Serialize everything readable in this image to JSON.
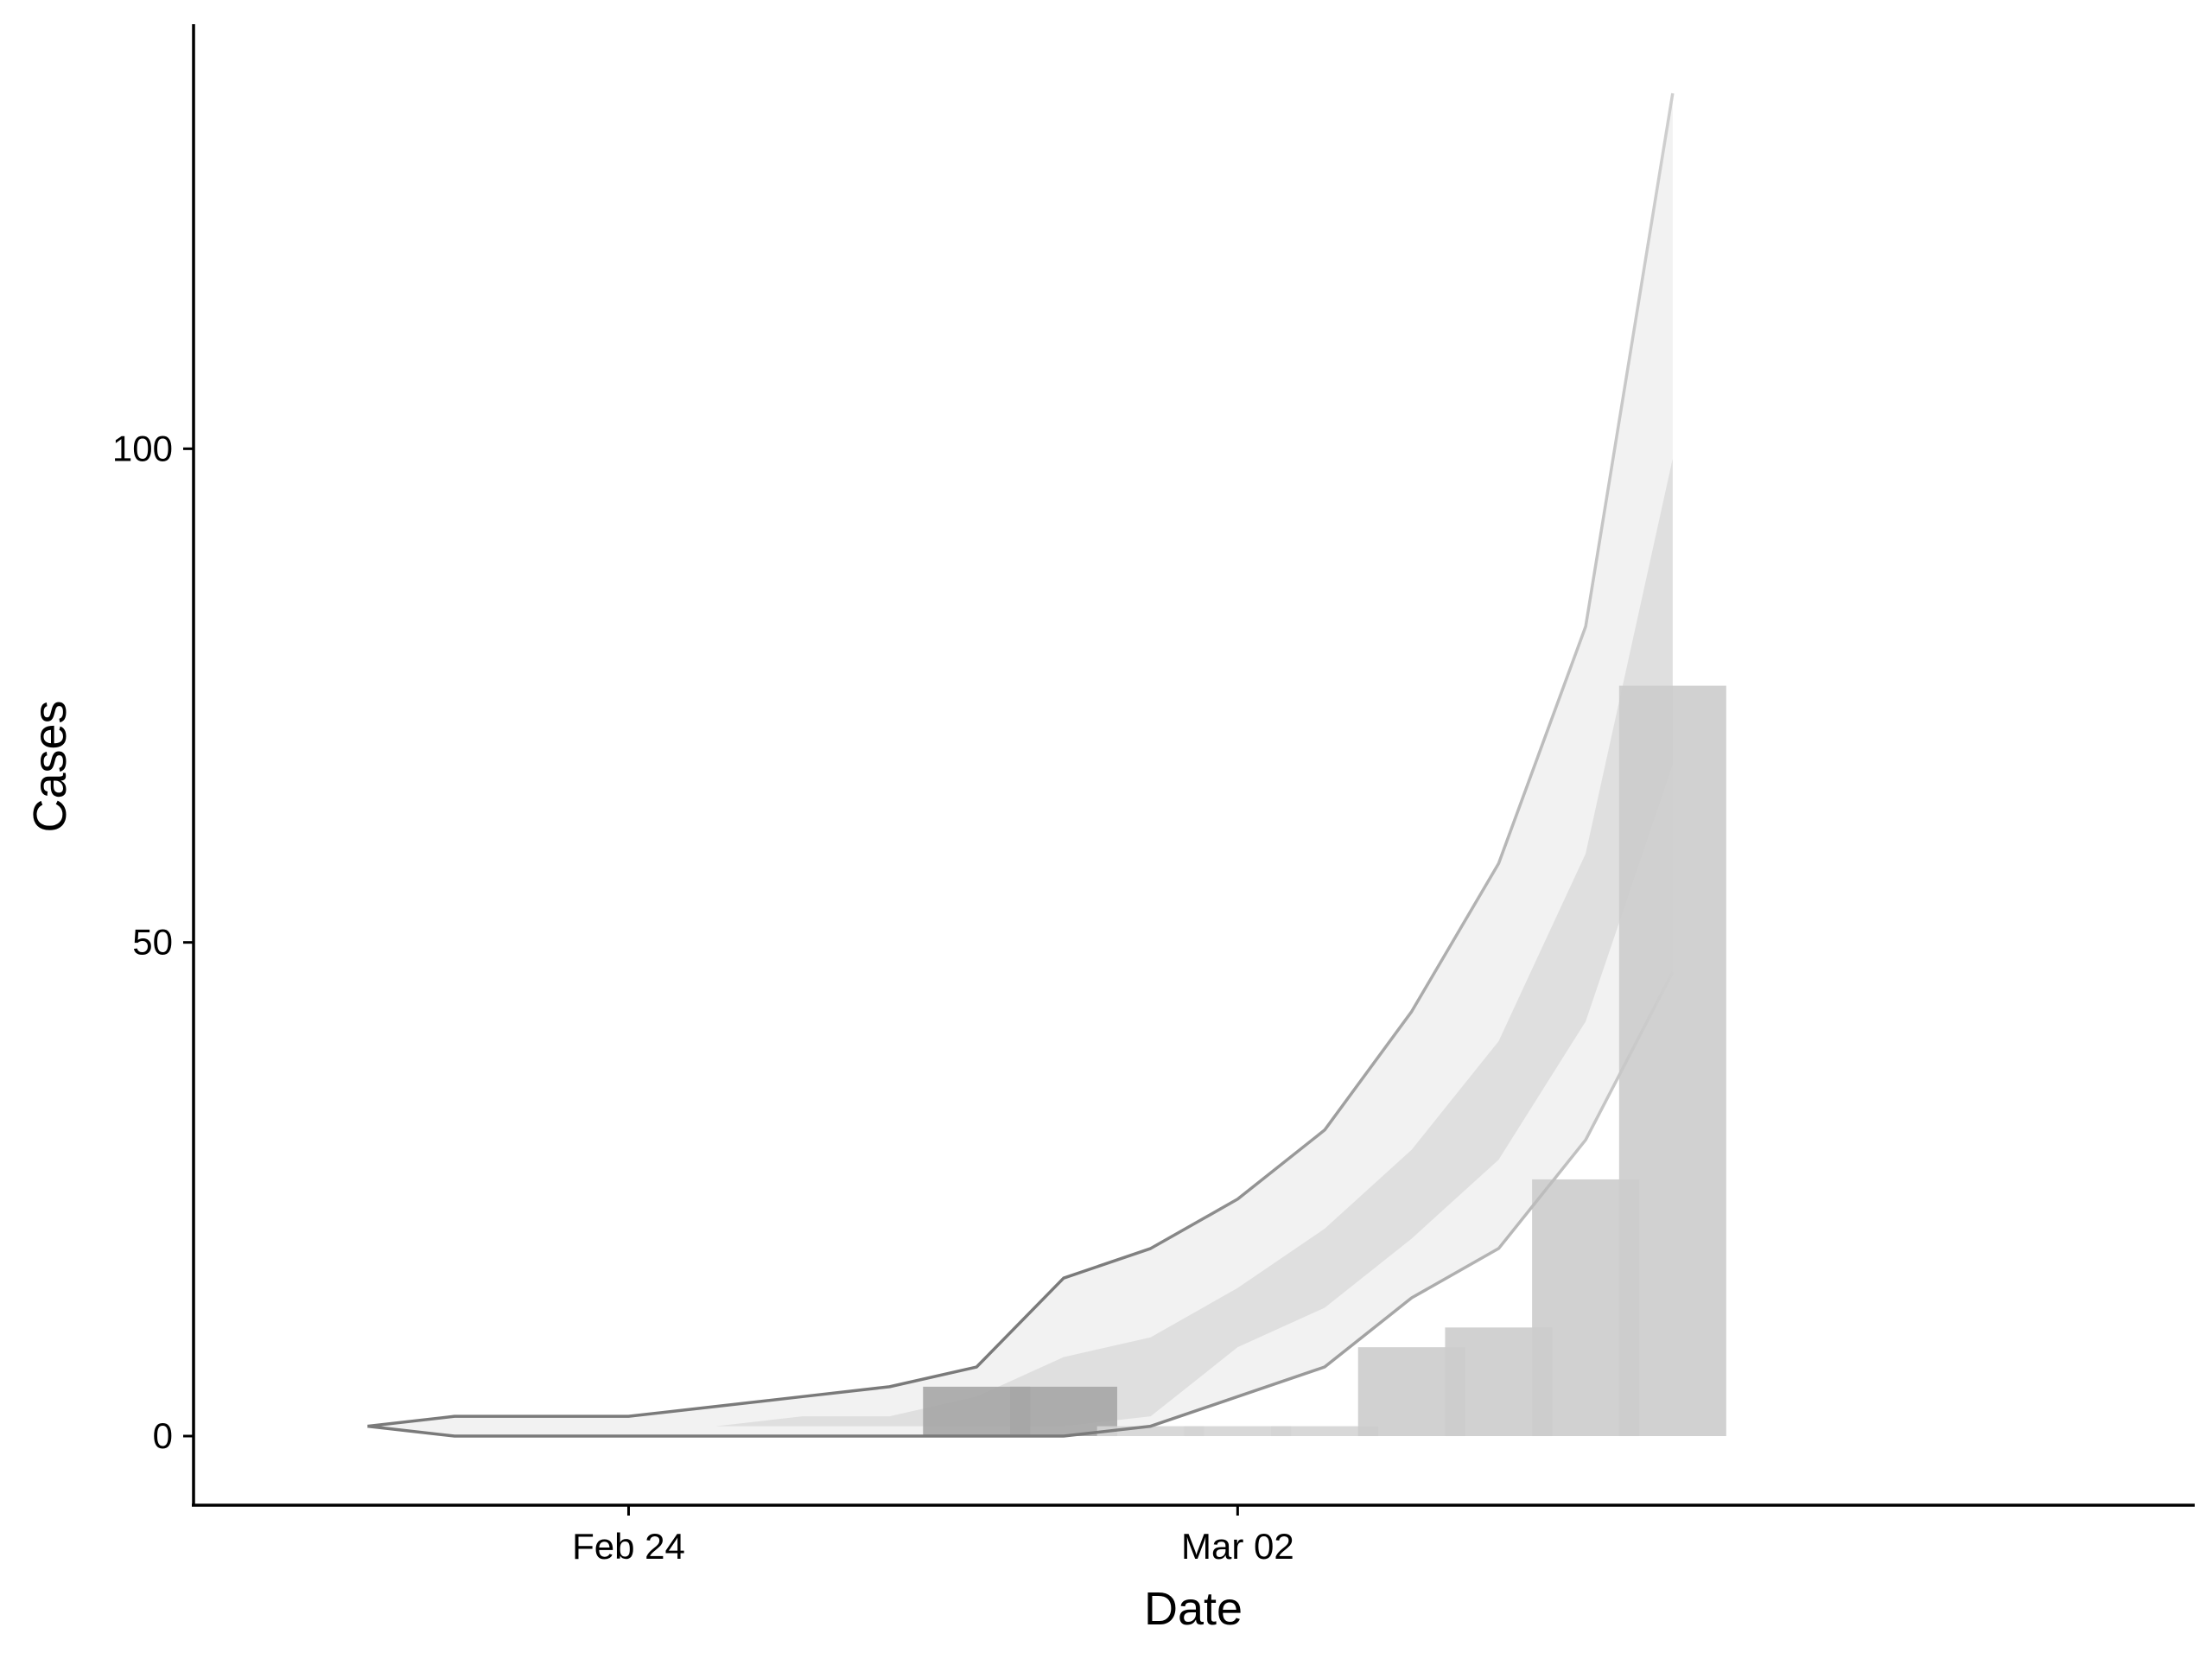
{
  "chart_data": {
    "type": "bar",
    "xlabel": "Date",
    "ylabel": "Cases",
    "x_tick_labels": [
      {
        "date": "2020-02-24",
        "label": "Feb 24"
      },
      {
        "date": "2020-03-02",
        "label": "Mar 02"
      }
    ],
    "y_ticks": [
      0,
      50,
      100
    ],
    "xlim": [
      "2020-02-19",
      "2020-03-13"
    ],
    "ylim": [
      -7,
      143
    ],
    "grid": false,
    "legend": "none",
    "bars": {
      "dates": [
        "2020-02-28",
        "2020-02-29",
        "2020-03-01",
        "2020-03-02",
        "2020-03-03",
        "2020-03-04",
        "2020-03-05",
        "2020-03-06",
        "2020-03-07"
      ],
      "values": [
        5,
        5,
        1,
        1,
        1,
        9,
        11,
        26,
        76
      ],
      "colors": [
        "#a6a6a6",
        "#a6a6a6",
        "#d4d4d4",
        "#d4d4d4",
        "#d4d4d4",
        "#cccccc",
        "#cccccc",
        "#cccccc",
        "#cccccc"
      ]
    },
    "projection": {
      "dates": [
        "2020-02-21",
        "2020-02-22",
        "2020-02-23",
        "2020-02-24",
        "2020-02-25",
        "2020-02-26",
        "2020-02-27",
        "2020-02-28",
        "2020-02-29",
        "2020-03-01",
        "2020-03-02",
        "2020-03-03",
        "2020-03-04",
        "2020-03-05",
        "2020-03-06",
        "2020-03-07"
      ],
      "outer_upper": [
        1,
        2,
        2,
        2,
        3,
        4,
        5,
        7,
        16,
        19,
        24,
        31,
        43,
        58,
        82,
        136
      ],
      "outer_lower": [
        1,
        0,
        0,
        0,
        0,
        0,
        0,
        0,
        0,
        1,
        4,
        7,
        14,
        19,
        30,
        47
      ],
      "inner_upper": [
        1,
        1,
        1,
        1,
        1,
        2,
        2,
        4,
        8,
        10,
        15,
        21,
        29,
        40,
        59,
        99
      ],
      "inner_lower": [
        1,
        1,
        1,
        1,
        1,
        1,
        1,
        1,
        1,
        2,
        9,
        13,
        20,
        28,
        42,
        68
      ]
    },
    "colors": {
      "outer_band": "#eeeeee",
      "inner_band": "#d2d2d2",
      "line_dark": "#7a7a7a",
      "line_light": "#cfcfcf",
      "axis": "#000000"
    }
  }
}
